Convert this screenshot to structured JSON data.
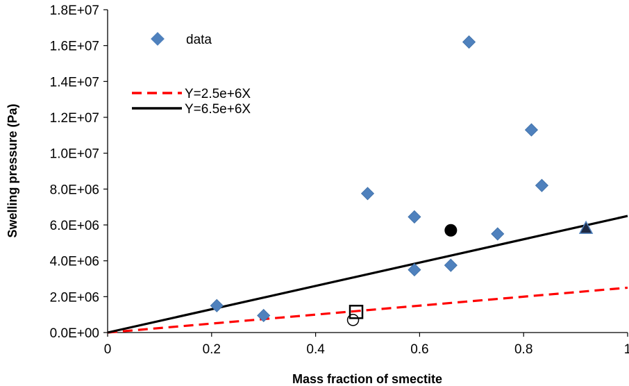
{
  "chart_data": {
    "type": "scatter",
    "title": "",
    "xlabel": "Mass fraction of smectite",
    "ylabel": "Swelling pressure (Pa)",
    "xlim": [
      0,
      1
    ],
    "ylim": [
      0,
      18000000
    ],
    "x_ticks": [
      0,
      0.2,
      0.4,
      0.6,
      0.8,
      1
    ],
    "x_tick_labels": [
      "0",
      "0.2",
      "0.4",
      "0.6",
      "0.8",
      "1"
    ],
    "y_ticks": [
      0,
      2000000,
      4000000,
      6000000,
      8000000,
      10000000,
      12000000,
      14000000,
      16000000,
      18000000
    ],
    "y_tick_labels": [
      "0.0E+00",
      "2.0E+06",
      "4.0E+06",
      "6.0E+06",
      "8.0E+06",
      "1.0E+07",
      "1.2E+07",
      "1.4E+07",
      "1.6E+07",
      "1.8E+07"
    ],
    "grid": false,
    "legend_position": "top-left",
    "series": [
      {
        "name": "data",
        "kind": "scatter",
        "marker": "diamond",
        "color": "#4F81BD",
        "x": [
          0.21,
          0.3,
          0.5,
          0.59,
          0.59,
          0.66,
          0.695,
          0.75,
          0.815,
          0.835
        ],
        "y": [
          1500000,
          950000,
          7750000,
          6450000,
          3500000,
          3750000,
          16200000,
          5500000,
          11300000,
          8200000
        ]
      },
      {
        "name": "Y=2.5e+6X",
        "kind": "line",
        "style": "dashed",
        "color": "#FF0000",
        "x": [
          0,
          1
        ],
        "y": [
          0,
          2500000
        ]
      },
      {
        "name": "Y=6.5e+6X",
        "kind": "line",
        "style": "solid",
        "color": "#000000",
        "x": [
          0,
          1
        ],
        "y": [
          0,
          6500000
        ]
      }
    ],
    "extra_points": [
      {
        "marker": "open-circle",
        "x": 0.472,
        "y": 700000
      },
      {
        "marker": "open-square",
        "x": 0.478,
        "y": 1150000
      },
      {
        "marker": "filled-circle",
        "x": 0.66,
        "y": 5700000
      },
      {
        "marker": "filled-triangle",
        "x": 0.92,
        "y": 5800000
      }
    ]
  }
}
